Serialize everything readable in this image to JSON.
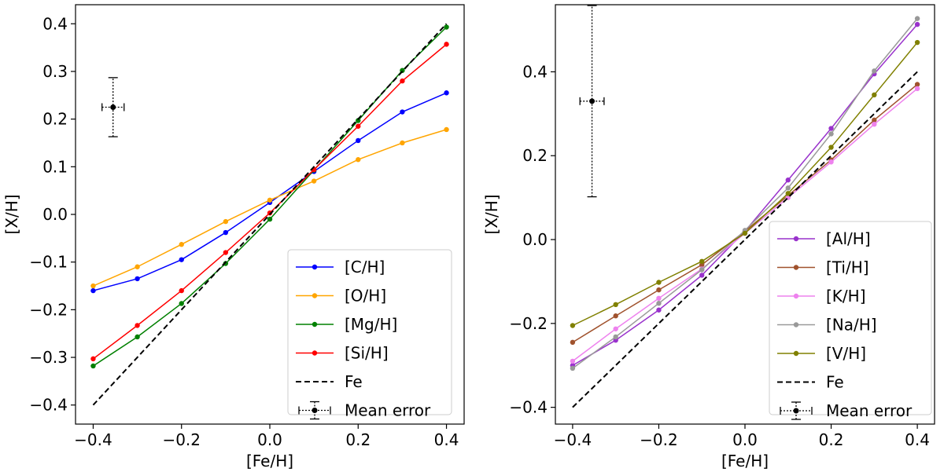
{
  "chart_data": [
    {
      "type": "line",
      "xlabel": "[Fe/H]",
      "ylabel": "[X/H]",
      "xlim": [
        -0.44,
        0.44
      ],
      "ylim": [
        -0.44,
        0.44
      ],
      "xticks": [
        -0.4,
        -0.2,
        0.0,
        0.2,
        0.4
      ],
      "xtick_labels": [
        "−0.4",
        "−0.2",
        "0.0",
        "0.2",
        "0.4"
      ],
      "yticks": [
        -0.4,
        -0.3,
        -0.2,
        -0.1,
        0.0,
        0.1,
        0.2,
        0.3,
        0.4
      ],
      "ytick_labels": [
        "−0.4",
        "−0.3",
        "−0.2",
        "−0.1",
        "0.0",
        "0.1",
        "0.2",
        "0.3",
        "0.4"
      ],
      "grid": false,
      "legend_position": "lower-right",
      "x": [
        -0.4,
        -0.3,
        -0.2,
        -0.1,
        0.0,
        0.1,
        0.2,
        0.3,
        0.4
      ],
      "series": [
        {
          "name": "[C/H]",
          "color": "#0000ff",
          "values": [
            -0.16,
            -0.135,
            -0.095,
            -0.038,
            0.025,
            0.09,
            0.155,
            0.215,
            0.255
          ]
        },
        {
          "name": "[O/H]",
          "color": "#ffa500",
          "values": [
            -0.15,
            -0.11,
            -0.063,
            -0.015,
            0.03,
            0.07,
            0.115,
            0.15,
            0.178
          ]
        },
        {
          "name": "[Mg/H]",
          "color": "#008000",
          "values": [
            -0.318,
            -0.257,
            -0.187,
            -0.103,
            -0.01,
            0.093,
            0.197,
            0.302,
            0.393
          ]
        },
        {
          "name": "[Si/H]",
          "color": "#ff0000",
          "values": [
            -0.303,
            -0.233,
            -0.16,
            -0.08,
            0.003,
            0.094,
            0.185,
            0.28,
            0.357
          ]
        }
      ],
      "reference": {
        "name": "Fe",
        "x": [
          -0.4,
          0.4
        ],
        "y": [
          -0.4,
          0.4
        ]
      },
      "mean_error": {
        "name": "Mean error",
        "x": -0.355,
        "y": 0.225,
        "xerr": 0.025,
        "yerr": 0.062
      }
    },
    {
      "type": "line",
      "xlabel": "[Fe/H]",
      "ylabel": "[X/H]",
      "xlim": [
        -0.44,
        0.44
      ],
      "ylim": [
        -0.44,
        0.56
      ],
      "xticks": [
        -0.4,
        -0.2,
        0.0,
        0.2,
        0.4
      ],
      "xtick_labels": [
        "−0.4",
        "−0.2",
        "0.0",
        "0.2",
        "0.4"
      ],
      "yticks": [
        -0.4,
        -0.2,
        0.0,
        0.2,
        0.4
      ],
      "ytick_labels": [
        "−0.4",
        "−0.2",
        "0.0",
        "0.2",
        "0.4"
      ],
      "grid": false,
      "legend_position": "lower-right",
      "x": [
        -0.4,
        -0.3,
        -0.2,
        -0.1,
        0.0,
        0.1,
        0.2,
        0.3,
        0.4
      ],
      "series": [
        {
          "name": "[Al/H]",
          "color": "#9932cc",
          "values": [
            -0.3,
            -0.24,
            -0.168,
            -0.085,
            0.02,
            0.142,
            0.265,
            0.395,
            0.513
          ]
        },
        {
          "name": "[Ti/H]",
          "color": "#a0522d",
          "values": [
            -0.245,
            -0.182,
            -0.12,
            -0.06,
            0.02,
            0.105,
            0.19,
            0.285,
            0.37
          ]
        },
        {
          "name": "[K/H]",
          "color": "#ee82ee",
          "values": [
            -0.29,
            -0.213,
            -0.14,
            -0.07,
            0.015,
            0.1,
            0.185,
            0.275,
            0.36
          ]
        },
        {
          "name": "[Na/H]",
          "color": "#999999",
          "values": [
            -0.307,
            -0.232,
            -0.152,
            -0.072,
            0.022,
            0.123,
            0.252,
            0.402,
            0.527
          ]
        },
        {
          "name": "[V/H]",
          "color": "#808000",
          "values": [
            -0.205,
            -0.155,
            -0.102,
            -0.052,
            0.015,
            0.11,
            0.22,
            0.345,
            0.47
          ]
        }
      ],
      "reference": {
        "name": "Fe",
        "x": [
          -0.4,
          0.4
        ],
        "y": [
          -0.4,
          0.4
        ]
      },
      "mean_error": {
        "name": "Mean error",
        "x": -0.355,
        "y": 0.33,
        "xerr": 0.028,
        "yerr": 0.228
      }
    }
  ]
}
